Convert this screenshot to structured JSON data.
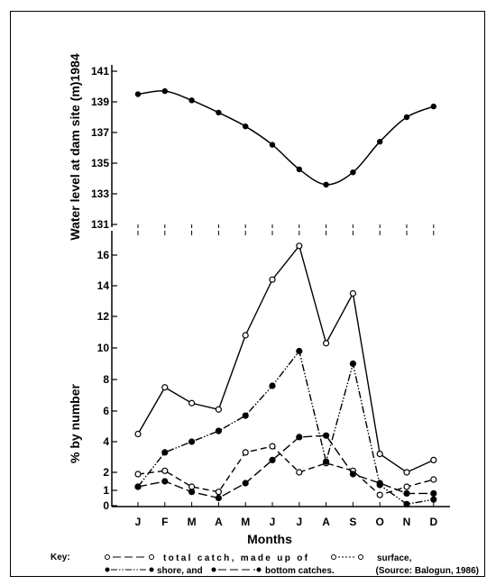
{
  "chart_data": [
    {
      "type": "line",
      "title": "",
      "xlabel": "",
      "ylabel": "Water level at dam site (m)1984",
      "ylim": [
        131,
        141
      ],
      "yticks": [
        131,
        133,
        135,
        137,
        139,
        141
      ],
      "categories": [
        "J",
        "F",
        "M",
        "A",
        "M",
        "J",
        "J",
        "A",
        "S",
        "O",
        "N",
        "D"
      ],
      "series": [
        {
          "values": [
            139.5,
            139.7,
            139.1,
            138.3,
            137.4,
            136.2,
            134.6,
            133.6,
            134.4,
            136.4,
            138.0,
            138.7
          ]
        }
      ]
    },
    {
      "type": "line",
      "title": "",
      "xlabel": "Months",
      "ylabel": "% by number",
      "ylim": [
        0,
        17
      ],
      "yticks": [
        0,
        1,
        2,
        4,
        6,
        8,
        10,
        12,
        14,
        16
      ],
      "categories": [
        "J",
        "F",
        "M",
        "A",
        "M",
        "J",
        "J",
        "A",
        "S",
        "O",
        "N",
        "D"
      ],
      "series": [
        {
          "name": "total catch",
          "values": [
            4.5,
            7.5,
            6.5,
            6.1,
            10.8,
            14.4,
            16.6,
            10.3,
            13.5,
            3.2,
            2.0,
            2.8
          ]
        },
        {
          "name": "surface",
          "values": [
            1.9,
            2.1,
            1.2,
            0.9,
            3.3,
            3.7,
            2.0,
            2.6,
            2.1,
            0.7,
            1.2,
            1.6
          ]
        },
        {
          "name": "shore",
          "values": [
            1.2,
            3.3,
            4.0,
            4.7,
            5.7,
            7.6,
            9.8,
            2.7,
            9.0,
            1.3,
            0.1,
            0.4
          ]
        },
        {
          "name": "bottom catches",
          "values": [
            1.2,
            1.5,
            0.9,
            0.5,
            1.4,
            2.8,
            4.3,
            4.4,
            1.9,
            1.4,
            0.8,
            0.8
          ]
        }
      ]
    }
  ],
  "key": {
    "label": "Key:",
    "line1_text1": "total catch, made up of",
    "line1_text2": "surface,",
    "line2_text1": "shore, and",
    "line2_text2": "bottom catches.",
    "source": "(Source: Balogun, 1986)"
  }
}
